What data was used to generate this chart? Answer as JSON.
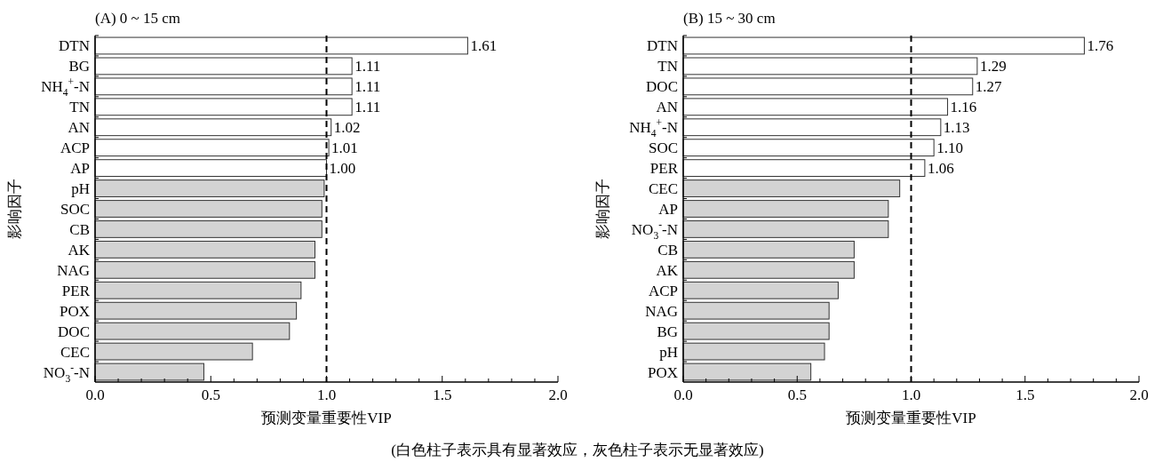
{
  "chart_data": [
    {
      "type": "bar",
      "orientation": "horizontal",
      "title": "(A) 0 ~ 15 cm",
      "xlabel": "预测变量重要性VIP",
      "ylabel": "影响因子",
      "categories": [
        "DTN",
        "BG",
        "NH$_{4}$$^{+}$-N",
        "TN",
        "AN",
        "ACP",
        "AP",
        "pH",
        "SOC",
        "CB",
        "AK",
        "NAG",
        "PER",
        "POX",
        "DOC",
        "CEC",
        "NO$_{3}$$^{-}$-N"
      ],
      "values": [
        1.61,
        1.11,
        1.11,
        1.11,
        1.02,
        1.01,
        1.0,
        0.99,
        0.98,
        0.98,
        0.95,
        0.95,
        0.89,
        0.87,
        0.84,
        0.68,
        0.47
      ],
      "colors": [
        "#ffffff",
        "#ffffff",
        "#ffffff",
        "#ffffff",
        "#ffffff",
        "#ffffff",
        "#ffffff",
        "#d3d3d3",
        "#d3d3d3",
        "#d3d3d3",
        "#d3d3d3",
        "#d3d3d3",
        "#d3d3d3",
        "#d3d3d3",
        "#d3d3d3",
        "#d3d3d3",
        "#d3d3d3"
      ],
      "value_labels": [
        "1.61",
        "1.11",
        "1.11",
        "1.11",
        "1.02",
        "1.01",
        "1.00",
        null,
        null,
        null,
        null,
        null,
        null,
        null,
        null,
        null,
        null
      ],
      "xlim": [
        0,
        2
      ],
      "xticks": [
        {
          "value": 0,
          "label": "0.0"
        },
        {
          "value": 0.1,
          "label": null
        },
        {
          "value": 0.2,
          "label": null
        },
        {
          "value": 0.3,
          "label": null
        },
        {
          "value": 0.4,
          "label": null
        },
        {
          "value": 0.5,
          "label": "0.5"
        },
        {
          "value": 0.6,
          "label": null
        },
        {
          "value": 0.7,
          "label": null
        },
        {
          "value": 0.8,
          "label": null
        },
        {
          "value": 0.9,
          "label": null
        },
        {
          "value": 1,
          "label": "1.0"
        },
        {
          "value": 1.1,
          "label": null
        },
        {
          "value": 1.2,
          "label": null
        },
        {
          "value": 1.3,
          "label": null
        },
        {
          "value": 1.4,
          "label": null
        },
        {
          "value": 1.5,
          "label": "1.5"
        },
        {
          "value": 1.6,
          "label": null
        },
        {
          "value": 1.7,
          "label": null
        },
        {
          "value": 1.8,
          "label": null
        },
        {
          "value": 1.9,
          "label": null
        },
        {
          "value": 2,
          "label": "2.0"
        }
      ],
      "ref_lines": [
        {
          "axis": "x",
          "value": 1,
          "line_style": "dashed",
          "color": "#000000"
        }
      ],
      "annotations": [
        "(白色柱子表示具有显著效应，灰色柱子表示无显著效应)"
      ]
    },
    {
      "type": "bar",
      "orientation": "horizontal",
      "title": "(B) 15 ~ 30 cm",
      "xlabel": "预测变量重要性VIP",
      "ylabel": "影响因子",
      "categories": [
        "DTN",
        "TN",
        "DOC",
        "AN",
        "NH$_{4}$$^{+}$-N",
        "SOC",
        "PER",
        "CEC",
        "AP",
        "NO$_{3}$$^{-}$-N",
        "CB",
        "AK",
        "ACP",
        "NAG",
        "BG",
        "pH",
        "POX"
      ],
      "values": [
        1.76,
        1.29,
        1.27,
        1.16,
        1.13,
        1.1,
        1.06,
        0.95,
        0.9,
        0.9,
        0.75,
        0.75,
        0.68,
        0.64,
        0.64,
        0.62,
        0.56
      ],
      "colors": [
        "#ffffff",
        "#ffffff",
        "#ffffff",
        "#ffffff",
        "#ffffff",
        "#ffffff",
        "#ffffff",
        "#d3d3d3",
        "#d3d3d3",
        "#d3d3d3",
        "#d3d3d3",
        "#d3d3d3",
        "#d3d3d3",
        "#d3d3d3",
        "#d3d3d3",
        "#d3d3d3",
        "#d3d3d3"
      ],
      "value_labels": [
        "1.76",
        "1.29",
        "1.27",
        "1.16",
        "1.13",
        "1.10",
        "1.06",
        null,
        null,
        null,
        null,
        null,
        null,
        null,
        null,
        null,
        null
      ],
      "xlim": [
        0,
        2
      ],
      "xticks": [
        {
          "value": 0,
          "label": "0.0"
        },
        {
          "value": 0.1,
          "label": null
        },
        {
          "value": 0.2,
          "label": null
        },
        {
          "value": 0.3,
          "label": null
        },
        {
          "value": 0.4,
          "label": null
        },
        {
          "value": 0.5,
          "label": "0.5"
        },
        {
          "value": 0.6,
          "label": null
        },
        {
          "value": 0.7,
          "label": null
        },
        {
          "value": 0.8,
          "label": null
        },
        {
          "value": 0.9,
          "label": null
        },
        {
          "value": 1,
          "label": "1.0"
        },
        {
          "value": 1.1,
          "label": null
        },
        {
          "value": 1.2,
          "label": null
        },
        {
          "value": 1.3,
          "label": null
        },
        {
          "value": 1.4,
          "label": null
        },
        {
          "value": 1.5,
          "label": "1.5"
        },
        {
          "value": 1.6,
          "label": null
        },
        {
          "value": 1.7,
          "label": null
        },
        {
          "value": 1.8,
          "label": null
        },
        {
          "value": 1.9,
          "label": null
        },
        {
          "value": 2,
          "label": "2.0"
        }
      ],
      "ref_lines": [
        {
          "axis": "x",
          "value": 1,
          "line_style": "dashed",
          "color": "#000000"
        }
      ]
    }
  ]
}
